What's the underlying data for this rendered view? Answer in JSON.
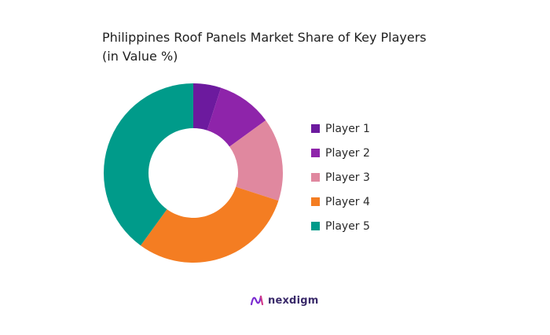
{
  "chart_data": {
    "type": "pie",
    "title": "Philippines Roof Panels Market Share of Key Players",
    "subtitle": "(in Value %)",
    "donut": true,
    "legend_position": "right",
    "categories": [
      "Player 1",
      "Player 2",
      "Player 3",
      "Player 4",
      "Player 5"
    ],
    "values": [
      5,
      10,
      15,
      30,
      40
    ],
    "colors": [
      "#6c1a9e",
      "#8e24aa",
      "#e0889f",
      "#f47d22",
      "#009b8a"
    ]
  },
  "brand": {
    "name": "nexdigm",
    "icon": "nexdigm-logo-icon"
  }
}
